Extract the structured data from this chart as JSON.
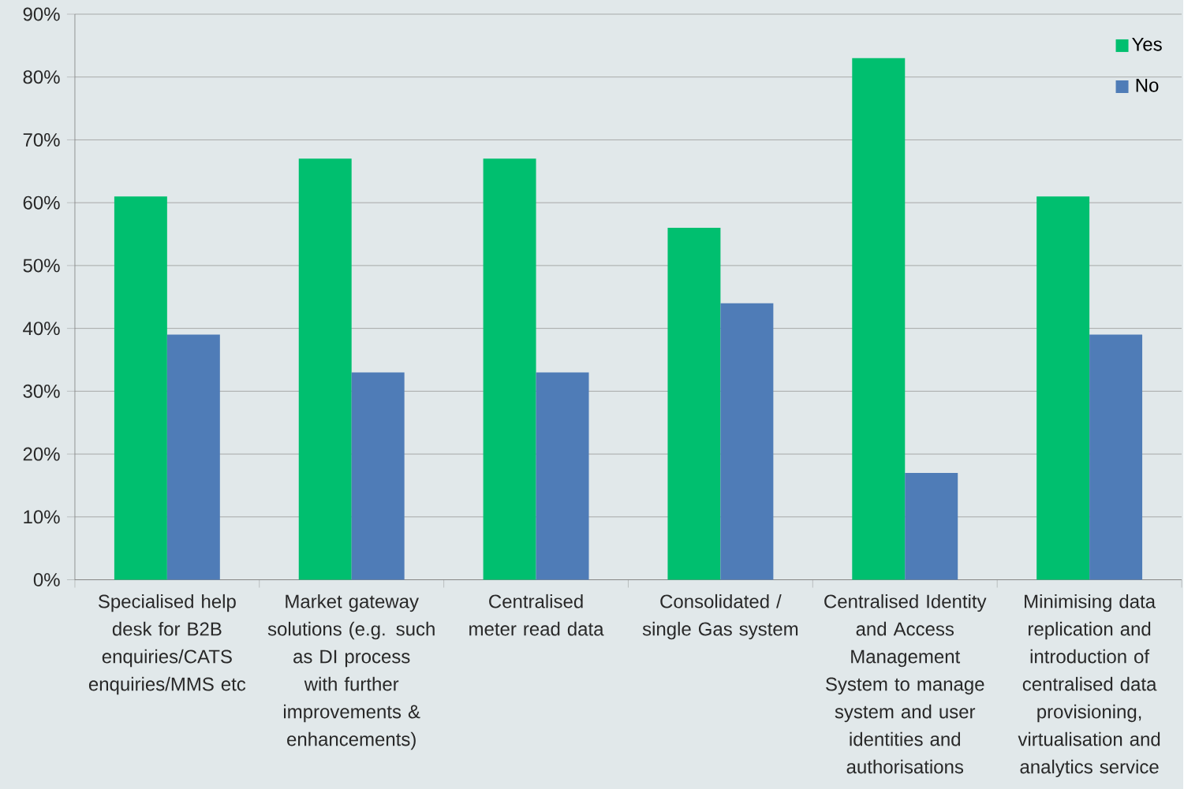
{
  "chart_data": {
    "type": "bar",
    "categories": [
      "Specialised help desk for B2B enquiries/CATS enquiries/MMS etc",
      "Market gateway solutions (e.g. such as DI process with further improvements & enhancements)",
      "Centralised meter read data",
      "Consolidated / single Gas system",
      "Centralised Identity and Access Management System to manage system and user identities and authorisations",
      "Minimising data replication and introduction of centralised data provisioning, virtualisation and analytics service"
    ],
    "series": [
      {
        "name": "Yes",
        "color": "#00bf6f",
        "values": [
          61,
          67,
          67,
          56,
          83,
          61
        ]
      },
      {
        "name": "No",
        "color": "#4f7cb7",
        "values": [
          39,
          33,
          33,
          44,
          17,
          39
        ]
      }
    ],
    "ylim": [
      0,
      90
    ],
    "yticks": [
      {
        "value": 0,
        "label": "0%"
      },
      {
        "value": 10,
        "label": "10%"
      },
      {
        "value": 20,
        "label": "20%"
      },
      {
        "value": 30,
        "label": "30%"
      },
      {
        "value": 40,
        "label": "40%"
      },
      {
        "value": 50,
        "label": "50%"
      },
      {
        "value": 60,
        "label": "60%"
      },
      {
        "value": 70,
        "label": "70%"
      },
      {
        "value": 80,
        "label": "80%"
      },
      {
        "value": 90,
        "label": "90%"
      }
    ],
    "grid": "y",
    "legend": "top right"
  }
}
